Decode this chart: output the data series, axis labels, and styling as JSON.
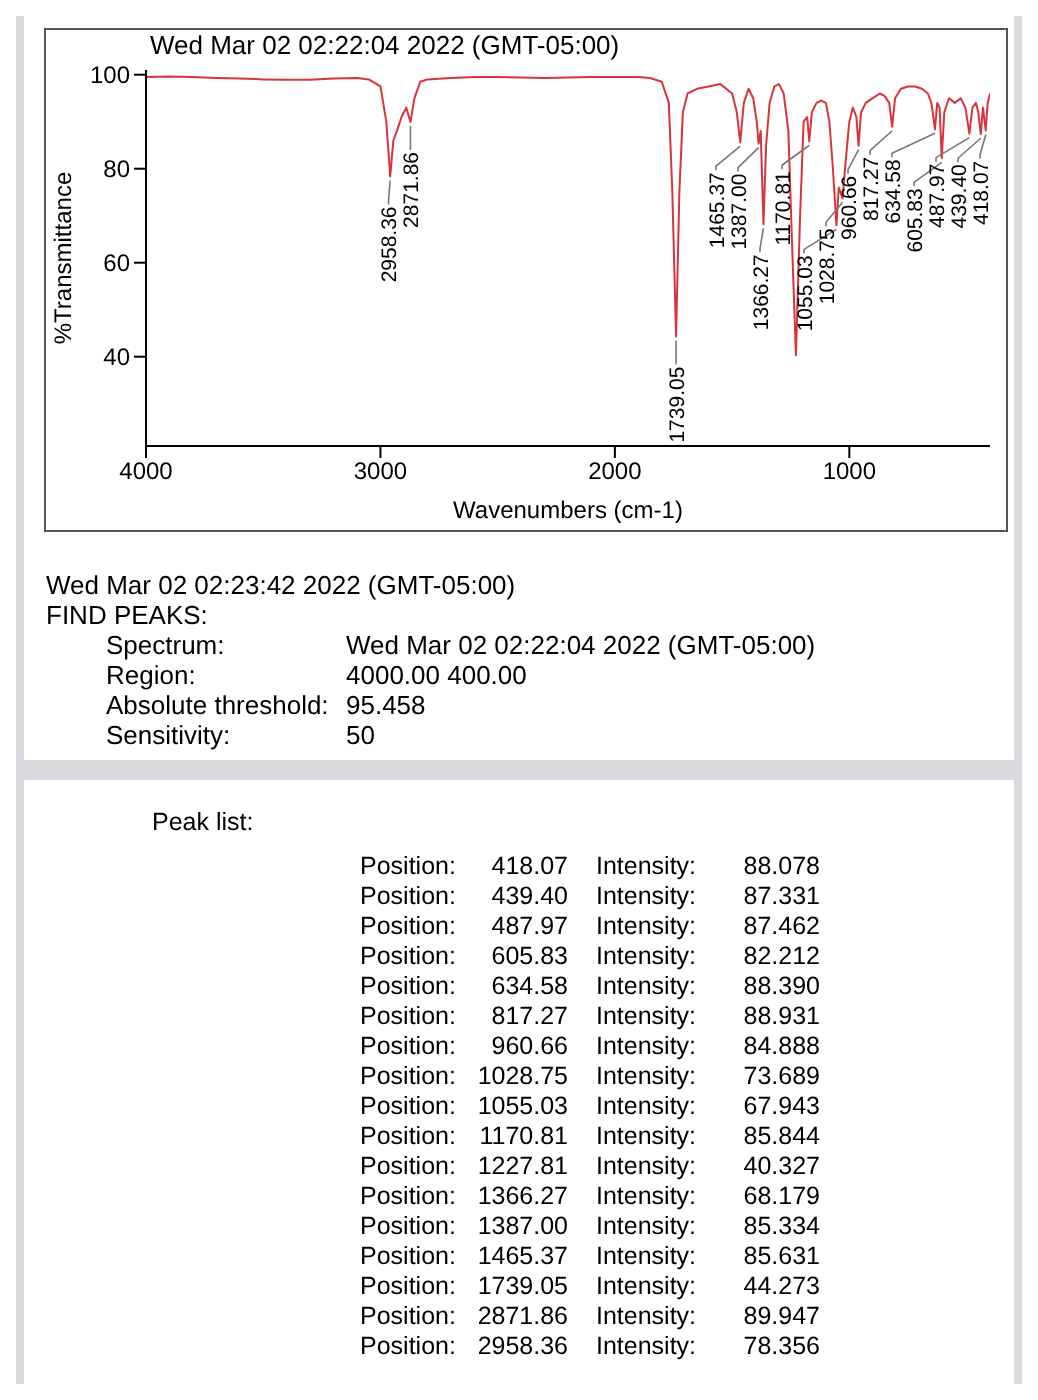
{
  "chart_data": [
    {
      "type": "line",
      "title": "Wed Mar 02 02:22:04 2022 (GMT-05:00)",
      "xlabel": "Wavenumbers (cm-1)",
      "ylabel": "%Transmittance",
      "xlim": [
        4000,
        400
      ],
      "xticks": [
        4000,
        3000,
        2000,
        1000
      ],
      "ylim": [
        21,
        101
      ],
      "yticks": [
        40,
        60,
        80,
        100
      ],
      "marker": "none",
      "line_style": "solid",
      "series": [
        {
          "color": "#d9343c",
          "x": [
            4000,
            3900,
            3800,
            3700,
            3600,
            3500,
            3400,
            3300,
            3200,
            3100,
            3050,
            3000,
            2975,
            2958.36,
            2945,
            2930,
            2910,
            2890,
            2871.86,
            2855,
            2830,
            2800,
            2700,
            2600,
            2500,
            2400,
            2300,
            2200,
            2100,
            2000,
            1900,
            1850,
            1800,
            1770,
            1755,
            1739.05,
            1725,
            1710,
            1690,
            1650,
            1600,
            1550,
            1500,
            1480,
            1465.37,
            1450,
            1430,
            1410,
            1395,
            1387.0,
            1378,
            1366.27,
            1355,
            1340,
            1320,
            1300,
            1280,
            1260,
            1245,
            1227.81,
            1210,
            1195,
            1180,
            1170.81,
            1160,
            1140,
            1120,
            1100,
            1085,
            1070,
            1055.03,
            1045,
            1028.75,
            1015,
            1000,
            985,
            970,
            960.66,
            950,
            930,
            900,
            870,
            850,
            830,
            817.27,
            805,
            780,
            750,
            720,
            690,
            665,
            650,
            634.58,
            625,
            615,
            605.83,
            595,
            575,
            550,
            525,
            505,
            487.97,
            475,
            460,
            450,
            439.4,
            430,
            418.07,
            410,
            400
          ],
          "values": [
            99.5,
            99.6,
            99.5,
            99.3,
            99.2,
            99.0,
            98.9,
            98.9,
            99.2,
            99.3,
            99.0,
            97.5,
            90,
            78.356,
            86,
            88,
            91,
            93,
            89.947,
            95,
            98.5,
            99,
            99.3,
            99.5,
            99.5,
            99.4,
            99.3,
            99.4,
            99.5,
            99.5,
            99.5,
            99.3,
            98.5,
            94,
            75,
            44.273,
            75,
            92,
            96,
            97,
            97.5,
            98,
            96,
            92,
            85.631,
            94,
            97,
            95,
            90,
            85.334,
            88,
            68.179,
            85,
            94,
            97.5,
            98,
            96,
            88,
            65,
            40.327,
            70,
            90,
            91,
            85.844,
            92,
            94,
            94.5,
            94,
            90,
            80,
            67.943,
            76,
            73.689,
            82,
            90,
            93,
            91,
            84.888,
            92,
            94,
            95,
            96,
            95.5,
            94,
            88.931,
            95,
            97,
            97.5,
            97.5,
            97,
            96,
            94,
            88.39,
            94,
            93,
            82.212,
            92,
            95,
            94,
            95,
            93,
            87.462,
            93,
            94,
            92,
            87.331,
            93,
            88.078,
            94,
            96
          ]
        }
      ],
      "annotations": [
        {
          "text": "2958.36",
          "x": 2958.36,
          "y": 78.356
        },
        {
          "text": "2871.86",
          "x": 2871.86,
          "y": 89.947
        },
        {
          "text": "1739.05",
          "x": 1739.05,
          "y": 44.273
        },
        {
          "text": "1465.37",
          "x": 1465.37,
          "y": 85.631
        },
        {
          "text": "1387.00",
          "x": 1387.0,
          "y": 85.334
        },
        {
          "text": "1366.27",
          "x": 1366.27,
          "y": 68.179
        },
        {
          "text": "1170.81",
          "x": 1170.81,
          "y": 85.844
        },
        {
          "text": "1055.03",
          "x": 1055.03,
          "y": 67.943
        },
        {
          "text": "1028.75",
          "x": 1028.75,
          "y": 73.689
        },
        {
          "text": "960.66",
          "x": 960.66,
          "y": 84.888
        },
        {
          "text": "817.27",
          "x": 817.27,
          "y": 88.931
        },
        {
          "text": "634.58",
          "x": 634.58,
          "y": 88.39
        },
        {
          "text": "605.83",
          "x": 605.83,
          "y": 82.212
        },
        {
          "text": "487.97",
          "x": 487.97,
          "y": 87.462
        },
        {
          "text": "439.40",
          "x": 439.4,
          "y": 87.331
        },
        {
          "text": "418.07",
          "x": 418.07,
          "y": 88.078
        },
        "Wed Mar 02 02:23:42 2022 (GMT-05:00)",
        "FIND PEAKS:",
        "Spectrum: Wed Mar 02 02:22:04 2022 (GMT-05:00)",
        "Region: 4000.00 400.00",
        "Absolute threshold: 95.458",
        "Sensitivity: 50"
      ]
    },
    {
      "type": "other",
      "title": "Peak list:",
      "annotations": [
        "Position: 418.07 Intensity: 88.078",
        "Position: 439.40 Intensity: 87.331",
        "Position: 487.97 Intensity: 87.462",
        "Position: 605.83 Intensity: 82.212",
        "Position: 634.58 Intensity: 88.390",
        "Position: 817.27 Intensity: 88.931",
        "Position: 960.66 Intensity: 84.888",
        "Position: 1028.75 Intensity: 73.689",
        "Position: 1055.03 Intensity: 67.943",
        "Position: 1170.81 Intensity: 85.844",
        "Position: 1227.81 Intensity: 40.327",
        "Position: 1366.27 Intensity: 68.179",
        "Position: 1387.00 Intensity: 85.334",
        "Position: 1465.37 Intensity: 85.631",
        "Position: 1739.05 Intensity: 44.273",
        "Position: 2871.86 Intensity: 89.947",
        "Position: 2958.36 Intensity: 78.356"
      ]
    }
  ]
}
